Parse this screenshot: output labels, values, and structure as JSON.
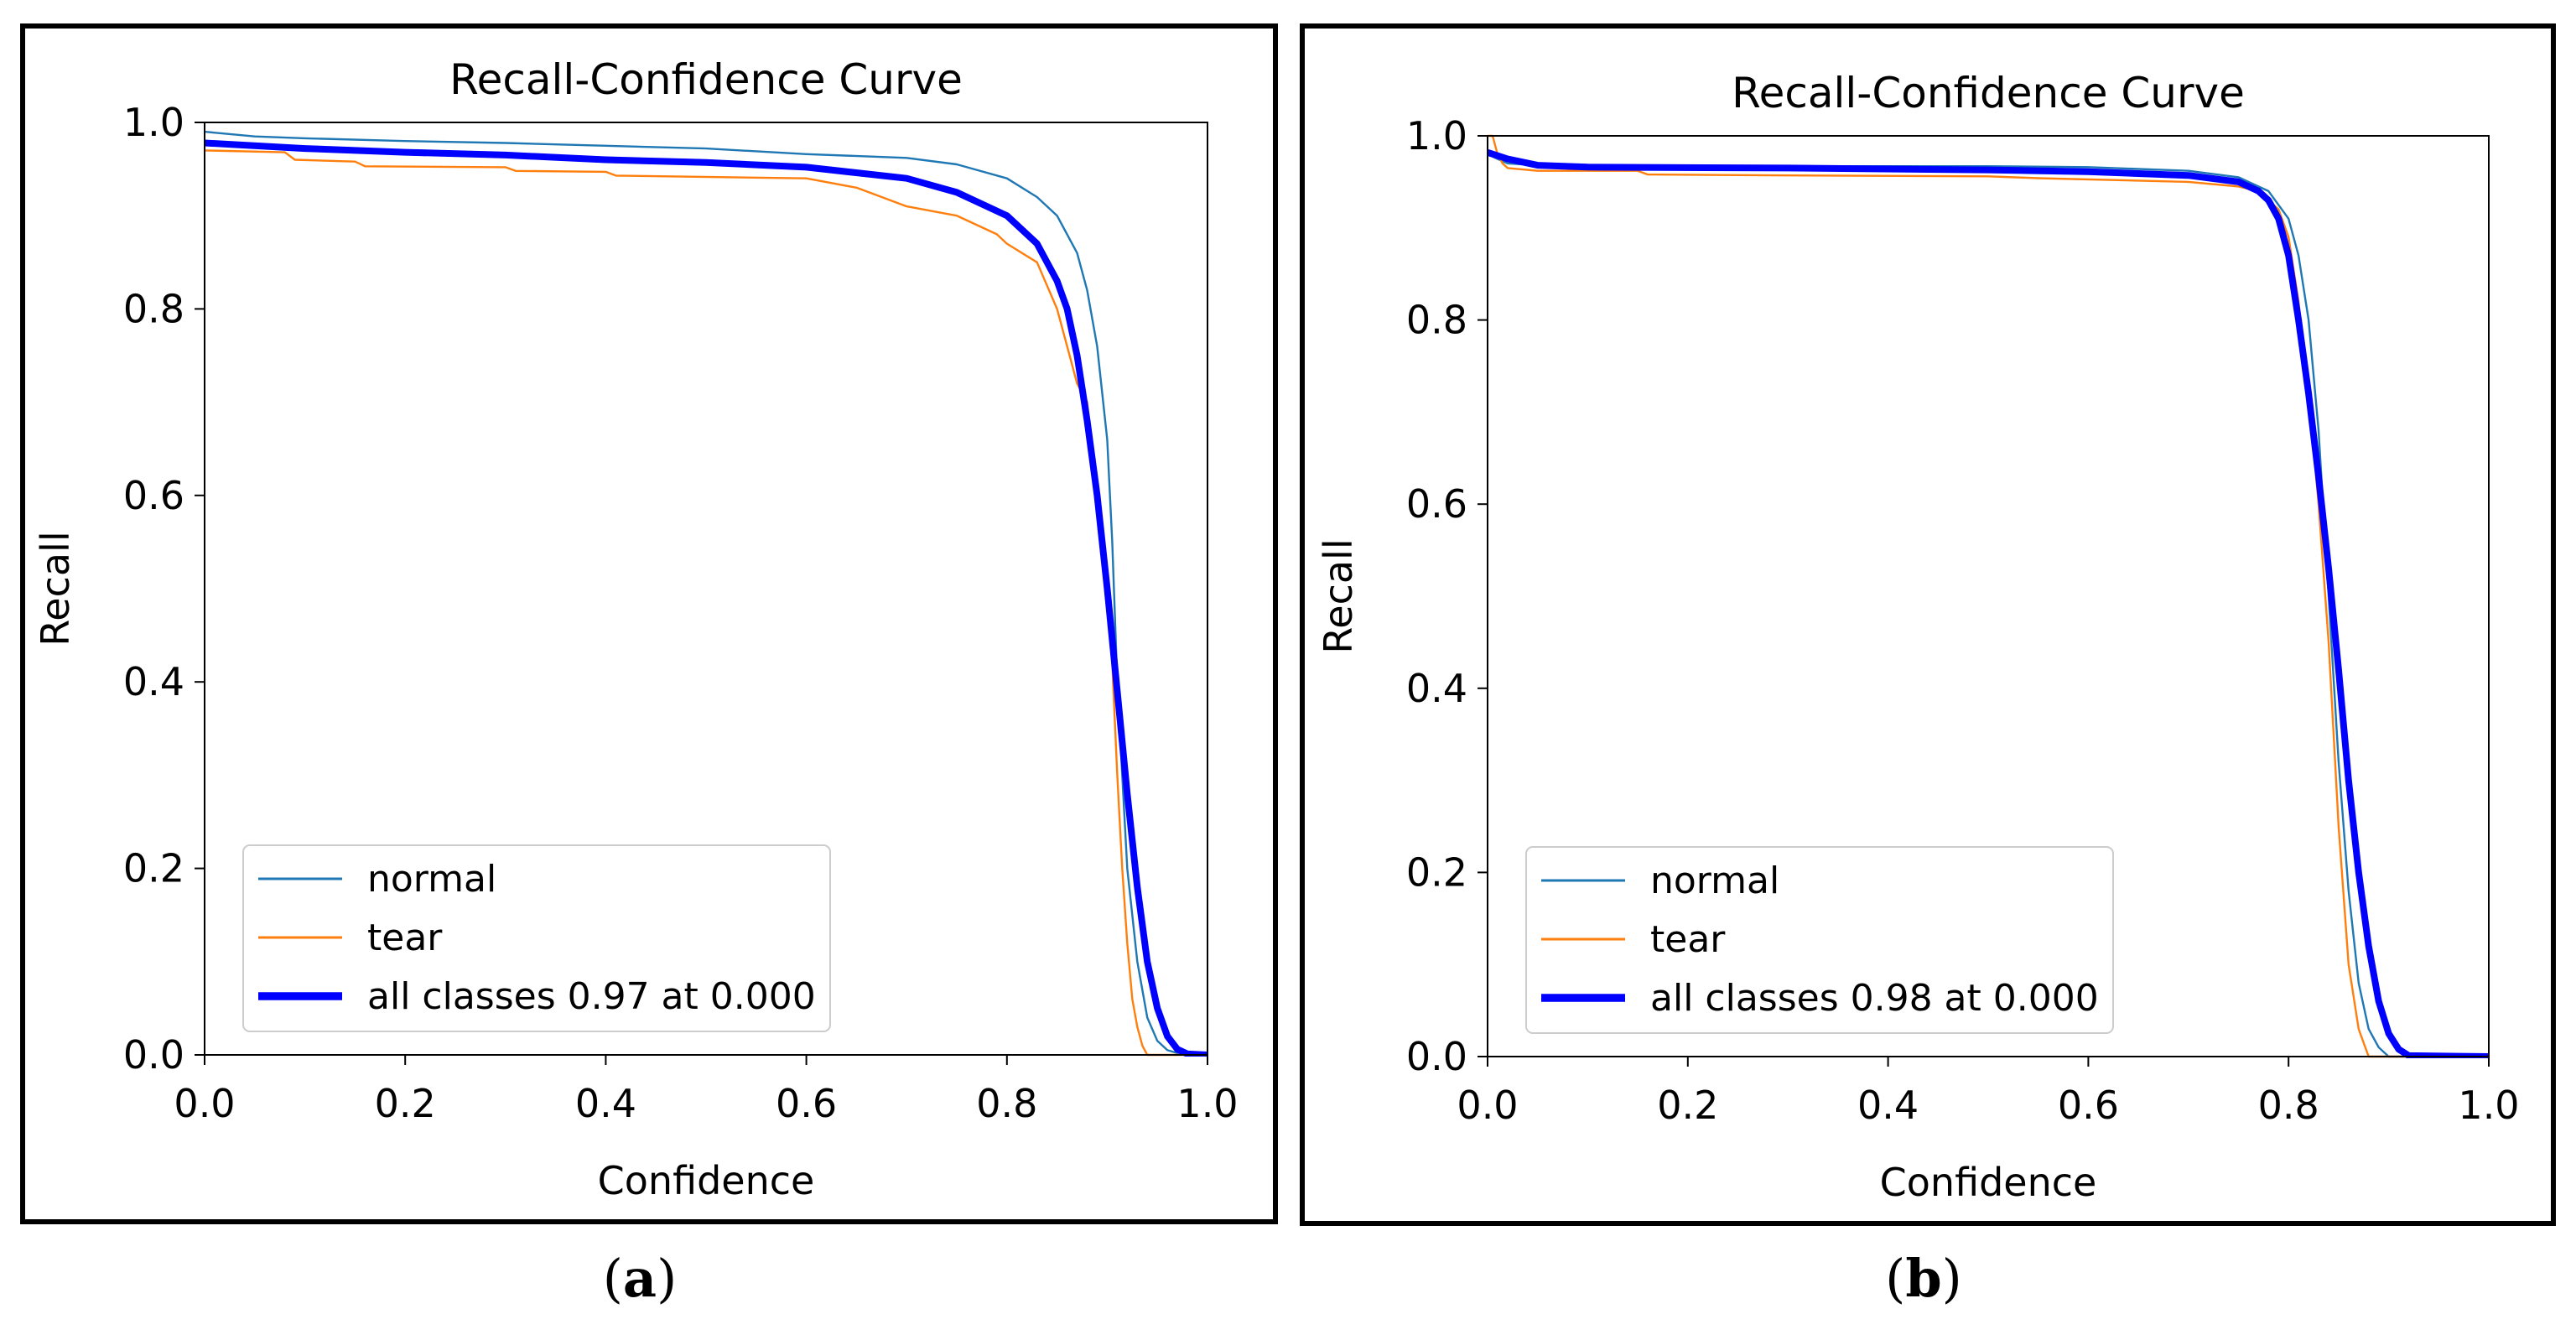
{
  "colors": {
    "normal": "#1f77b4",
    "tear": "#ff7f0e",
    "all": "#0000ff"
  },
  "captions": {
    "a": "a",
    "b": "b"
  },
  "chart_data": [
    {
      "type": "line",
      "title": "Recall-Confidence Curve",
      "xlabel": "Confidence",
      "ylabel": "Recall",
      "xlim": [
        0,
        1
      ],
      "ylim": [
        0,
        1
      ],
      "xticks": [
        "0.0",
        "0.2",
        "0.4",
        "0.6",
        "0.8",
        "1.0"
      ],
      "yticks": [
        "0.0",
        "0.2",
        "0.4",
        "0.6",
        "0.8",
        "1.0"
      ],
      "legend_position": "lower-left",
      "series": [
        {
          "name": "normal",
          "color": "#1f77b4",
          "width": 1.2,
          "x": [
            0,
            0.05,
            0.1,
            0.2,
            0.3,
            0.4,
            0.5,
            0.6,
            0.7,
            0.75,
            0.8,
            0.83,
            0.85,
            0.87,
            0.88,
            0.89,
            0.9,
            0.905,
            0.91,
            0.915,
            0.92,
            0.93,
            0.94,
            0.95,
            0.96,
            0.97,
            0.98,
            1.0
          ],
          "y": [
            0.99,
            0.985,
            0.983,
            0.98,
            0.978,
            0.975,
            0.972,
            0.966,
            0.962,
            0.955,
            0.94,
            0.92,
            0.9,
            0.86,
            0.82,
            0.76,
            0.66,
            0.55,
            0.4,
            0.3,
            0.2,
            0.1,
            0.04,
            0.015,
            0.005,
            0.002,
            0,
            0
          ]
        },
        {
          "name": "tear",
          "color": "#ff7f0e",
          "width": 1.2,
          "x": [
            0,
            0.08,
            0.09,
            0.15,
            0.16,
            0.3,
            0.31,
            0.4,
            0.41,
            0.6,
            0.65,
            0.7,
            0.75,
            0.79,
            0.8,
            0.83,
            0.85,
            0.86,
            0.87,
            0.88,
            0.89,
            0.9,
            0.905,
            0.91,
            0.915,
            0.92,
            0.925,
            0.93,
            0.935,
            0.94,
            1.0
          ],
          "y": [
            0.97,
            0.968,
            0.96,
            0.958,
            0.953,
            0.952,
            0.948,
            0.947,
            0.943,
            0.94,
            0.93,
            0.91,
            0.9,
            0.88,
            0.87,
            0.85,
            0.8,
            0.76,
            0.72,
            0.7,
            0.6,
            0.5,
            0.42,
            0.3,
            0.2,
            0.12,
            0.06,
            0.03,
            0.01,
            0,
            0
          ]
        },
        {
          "name": "all classes 0.97 at 0.000",
          "color": "#0000ff",
          "width": 4,
          "x": [
            0,
            0.1,
            0.2,
            0.3,
            0.4,
            0.5,
            0.6,
            0.7,
            0.75,
            0.8,
            0.83,
            0.85,
            0.86,
            0.87,
            0.88,
            0.89,
            0.9,
            0.91,
            0.92,
            0.93,
            0.94,
            0.95,
            0.96,
            0.97,
            0.98,
            1.0
          ],
          "y": [
            0.978,
            0.972,
            0.968,
            0.965,
            0.96,
            0.957,
            0.952,
            0.94,
            0.925,
            0.9,
            0.87,
            0.83,
            0.8,
            0.75,
            0.68,
            0.6,
            0.5,
            0.39,
            0.28,
            0.18,
            0.1,
            0.05,
            0.02,
            0.006,
            0.001,
            0
          ]
        }
      ]
    },
    {
      "type": "line",
      "title": "Recall-Confidence Curve",
      "xlabel": "Confidence",
      "ylabel": "Recall",
      "xlim": [
        0,
        1
      ],
      "ylim": [
        0,
        1
      ],
      "xticks": [
        "0.0",
        "0.2",
        "0.4",
        "0.6",
        "0.8",
        "1.0"
      ],
      "yticks": [
        "0.0",
        "0.2",
        "0.4",
        "0.6",
        "0.8",
        "1.0"
      ],
      "legend_position": "lower-left",
      "series": [
        {
          "name": "normal",
          "color": "#1f77b4",
          "width": 1.2,
          "x": [
            0,
            0.01,
            0.02,
            0.05,
            0.1,
            0.3,
            0.5,
            0.6,
            0.7,
            0.75,
            0.78,
            0.8,
            0.81,
            0.82,
            0.83,
            0.84,
            0.85,
            0.86,
            0.87,
            0.88,
            0.89,
            0.9,
            1.0
          ],
          "y": [
            0.98,
            0.975,
            0.97,
            0.968,
            0.967,
            0.967,
            0.967,
            0.966,
            0.962,
            0.955,
            0.94,
            0.91,
            0.87,
            0.8,
            0.68,
            0.5,
            0.32,
            0.18,
            0.08,
            0.03,
            0.01,
            0,
            0
          ]
        },
        {
          "name": "tear",
          "color": "#ff7f0e",
          "width": 1.2,
          "x": [
            0,
            0.005,
            0.01,
            0.015,
            0.02,
            0.05,
            0.15,
            0.16,
            0.3,
            0.5,
            0.55,
            0.7,
            0.75,
            0.77,
            0.79,
            0.8,
            0.81,
            0.82,
            0.83,
            0.84,
            0.85,
            0.86,
            0.87,
            0.88,
            1.0
          ],
          "y": [
            1.0,
            1.0,
            0.98,
            0.97,
            0.965,
            0.962,
            0.962,
            0.958,
            0.957,
            0.956,
            0.954,
            0.95,
            0.945,
            0.94,
            0.92,
            0.89,
            0.82,
            0.72,
            0.6,
            0.45,
            0.25,
            0.1,
            0.03,
            0,
            0
          ]
        },
        {
          "name": "all classes 0.98 at 0.000",
          "color": "#0000ff",
          "width": 4,
          "x": [
            0,
            0.02,
            0.05,
            0.1,
            0.3,
            0.5,
            0.6,
            0.7,
            0.75,
            0.77,
            0.78,
            0.79,
            0.8,
            0.81,
            0.82,
            0.83,
            0.84,
            0.85,
            0.86,
            0.87,
            0.88,
            0.89,
            0.9,
            0.91,
            0.92,
            1.0
          ],
          "y": [
            0.982,
            0.975,
            0.968,
            0.966,
            0.965,
            0.963,
            0.961,
            0.957,
            0.95,
            0.94,
            0.93,
            0.91,
            0.87,
            0.8,
            0.72,
            0.63,
            0.53,
            0.42,
            0.3,
            0.2,
            0.12,
            0.06,
            0.025,
            0.008,
            0.001,
            0
          ]
        }
      ]
    }
  ]
}
